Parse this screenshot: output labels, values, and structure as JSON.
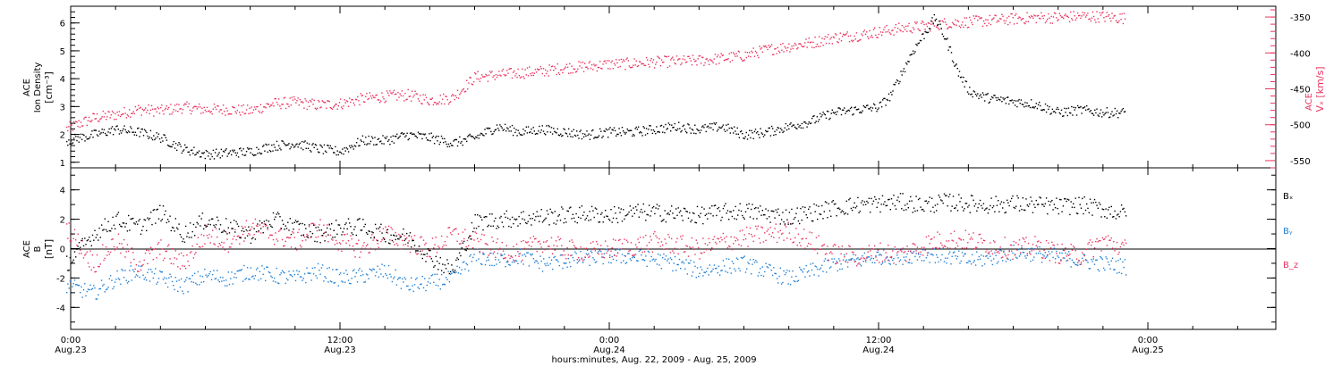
{
  "x_axis": {
    "title": "hours:minutes, Aug. 22, 2009 - Aug. 25, 2009",
    "ticks": [
      {
        "hours": 0,
        "time": "0:00",
        "date": "Aug.23"
      },
      {
        "hours": 12,
        "time": "12:00",
        "date": "Aug.23"
      },
      {
        "hours": 24,
        "time": "0:00",
        "date": "Aug.24"
      },
      {
        "hours": 36,
        "time": "12:00",
        "date": "Aug.24"
      },
      {
        "hours": 48,
        "time": "0:00",
        "date": "Aug.25"
      }
    ],
    "range_hours": [
      0,
      53.7
    ]
  },
  "top_panel": {
    "left_axis_label": [
      "ACE",
      "Ion Density",
      "[cm⁻³]"
    ],
    "right_axis_label": [
      "ACE",
      "Vₓ [km/s]"
    ],
    "left_ticks": [
      "1",
      "2",
      "3",
      "4",
      "5",
      "6"
    ],
    "right_ticks": [
      "-550",
      "-500",
      "-450",
      "-400",
      "-350"
    ],
    "left_color": "#000000",
    "right_color": "#e8345f"
  },
  "bottom_panel": {
    "axis_label": [
      "ACE",
      "B",
      "[nT]"
    ],
    "ticks": [
      "-4",
      "-2",
      "0",
      "2",
      "4"
    ],
    "legend": [
      {
        "name": "Bₓ",
        "color": "#000000"
      },
      {
        "name": "Bᵧ",
        "color": "#1f7fd6"
      },
      {
        "name": "B_z",
        "color": "#e8345f"
      }
    ]
  },
  "chart_data": [
    {
      "type": "scatter",
      "title": "",
      "xlabel": "hours:minutes, Aug. 22, 2009 - Aug. 25, 2009",
      "ylabel": "ACE Ion Density [cm⁻³]",
      "y2label": "ACE Vₓ [km/s]",
      "ylim": [
        0.8,
        6.6
      ],
      "y2lim": [
        -560,
        -335
      ],
      "grid": false,
      "x_units": "hours after 0:00 Aug.23",
      "series": [
        {
          "name": "Ion Density",
          "axis": "left",
          "color": "#000000",
          "x": [
            -0.2,
            1,
            2,
            3,
            4,
            5,
            6,
            7,
            8,
            9,
            10,
            11,
            12,
            13,
            14,
            15,
            16,
            17,
            18,
            19,
            20,
            21,
            22,
            23,
            24,
            25,
            26,
            27,
            28,
            29,
            30,
            31,
            32,
            33,
            34,
            35,
            36,
            36.5,
            37,
            37.5,
            38,
            38.5,
            39,
            39.5,
            40,
            40.5,
            41,
            42,
            43,
            44,
            45,
            46,
            47
          ],
          "y": [
            1.8,
            2.0,
            2.2,
            2.1,
            1.9,
            1.5,
            1.3,
            1.35,
            1.4,
            1.6,
            1.7,
            1.5,
            1.4,
            1.8,
            1.8,
            2.0,
            1.9,
            1.7,
            1.9,
            2.3,
            2.1,
            2.2,
            2.1,
            2.0,
            2.1,
            2.1,
            2.2,
            2.3,
            2.2,
            2.3,
            2.0,
            2.1,
            2.3,
            2.5,
            2.8,
            2.9,
            3.0,
            3.4,
            4.2,
            5.0,
            5.6,
            6.2,
            5.4,
            4.3,
            3.6,
            3.4,
            3.3,
            3.2,
            3.1,
            2.8,
            2.9,
            2.8,
            2.8
          ]
        },
        {
          "name": "Vx",
          "axis": "right",
          "color": "#e8345f",
          "x": [
            -0.2,
            1,
            2,
            3,
            4,
            5,
            6,
            7,
            8,
            9,
            10,
            11,
            12,
            13,
            14,
            15,
            16,
            17,
            18,
            19,
            20,
            21,
            22,
            23,
            24,
            25,
            26,
            27,
            28,
            29,
            30,
            31,
            32,
            33,
            34,
            35,
            36,
            37,
            38,
            39,
            40,
            41,
            42,
            43,
            44,
            45,
            46,
            47
          ],
          "y": [
            -505,
            -490,
            -485,
            -478,
            -480,
            -475,
            -478,
            -478,
            -480,
            -470,
            -468,
            -472,
            -470,
            -463,
            -460,
            -458,
            -465,
            -462,
            -433,
            -430,
            -427,
            -425,
            -420,
            -418,
            -415,
            -414,
            -412,
            -411,
            -410,
            -407,
            -403,
            -395,
            -390,
            -385,
            -378,
            -375,
            -370,
            -365,
            -362,
            -358,
            -356,
            -354,
            -352,
            -350,
            -350,
            -348,
            -349,
            -351
          ]
        }
      ]
    },
    {
      "type": "scatter",
      "title": "",
      "xlabel": "hours:minutes, Aug. 22, 2009 - Aug. 25, 2009",
      "ylabel": "ACE B [nT]",
      "ylim": [
        -5.5,
        5.5
      ],
      "grid": false,
      "zero_line": true,
      "x_units": "hours after 0:00 Aug.23",
      "series": [
        {
          "name": "Bₓ",
          "color": "#000000",
          "x": [
            -0.2,
            1,
            2,
            3,
            4,
            5,
            6,
            7,
            8,
            9,
            10,
            11,
            12,
            13,
            14,
            15,
            16,
            17,
            18,
            19,
            20,
            21,
            22,
            23,
            24,
            25,
            26,
            27,
            28,
            29,
            30,
            31,
            32,
            33,
            34,
            35,
            36,
            37,
            38,
            39,
            40,
            41,
            42,
            43,
            44,
            45,
            46,
            47
          ],
          "y": [
            -1.0,
            1.0,
            2.0,
            1.5,
            2.5,
            1.0,
            2.0,
            1.5,
            1.0,
            2.0,
            1.5,
            1.0,
            1.5,
            1.5,
            1.0,
            0.8,
            -0.5,
            -1.5,
            1.8,
            2.0,
            2.1,
            2.2,
            2.3,
            2.4,
            2.3,
            2.5,
            2.5,
            2.4,
            2.3,
            2.5,
            2.6,
            2.4,
            2.2,
            2.5,
            2.8,
            3.0,
            3.1,
            3.2,
            3.0,
            3.2,
            3.1,
            3.0,
            3.1,
            3.0,
            2.9,
            3.0,
            2.7,
            2.4
          ]
        },
        {
          "name": "Bᵧ",
          "color": "#1f7fd6",
          "x": [
            -0.2,
            1,
            2,
            3,
            4,
            5,
            6,
            7,
            8,
            9,
            10,
            11,
            12,
            13,
            14,
            15,
            16,
            17,
            18,
            19,
            20,
            21,
            22,
            23,
            24,
            25,
            26,
            27,
            28,
            29,
            30,
            31,
            32,
            33,
            34,
            35,
            36,
            37,
            38,
            39,
            40,
            41,
            42,
            43,
            44,
            45,
            46,
            47
          ],
          "y": [
            -2.5,
            -3.0,
            -2.0,
            -1.5,
            -2.0,
            -2.5,
            -1.8,
            -2.0,
            -1.5,
            -1.8,
            -2.0,
            -1.5,
            -2.0,
            -1.8,
            -1.5,
            -2.5,
            -2.3,
            -2.0,
            -0.5,
            -0.8,
            -0.5,
            -1.0,
            -0.8,
            -0.6,
            -0.5,
            -0.5,
            -0.7,
            -1.0,
            -1.5,
            -1.2,
            -1.0,
            -1.5,
            -2.0,
            -1.5,
            -1.0,
            -0.8,
            -0.5,
            -0.5,
            -0.3,
            -0.5,
            -0.8,
            -0.6,
            -0.2,
            -0.3,
            -0.5,
            -0.8,
            -1.0,
            -1.2
          ]
        },
        {
          "name": "B_z",
          "color": "#e8345f",
          "x": [
            -0.2,
            1,
            2,
            3,
            4,
            5,
            6,
            7,
            8,
            9,
            10,
            11,
            12,
            13,
            14,
            15,
            16,
            17,
            18,
            19,
            20,
            21,
            22,
            23,
            24,
            25,
            26,
            27,
            28,
            29,
            30,
            31,
            32,
            33,
            34,
            35,
            36,
            37,
            38,
            39,
            40,
            41,
            42,
            43,
            44,
            45,
            46,
            47
          ],
          "y": [
            1.5,
            -1.0,
            0.5,
            -1.0,
            0.0,
            -1.0,
            1.0,
            0.5,
            1.5,
            1.0,
            0.5,
            1.5,
            0.5,
            0.0,
            1.0,
            0.5,
            0.0,
            1.0,
            0.5,
            0.0,
            -0.2,
            0.5,
            0.0,
            -0.2,
            0.0,
            0.2,
            0.5,
            0.3,
            0.0,
            0.5,
            0.8,
            1.0,
            1.2,
            0.5,
            -0.3,
            -0.5,
            -0.2,
            -0.4,
            0.3,
            0.7,
            0.6,
            0.3,
            0.0,
            0.2,
            -0.3,
            -0.4,
            0.6,
            0.0
          ]
        }
      ]
    }
  ]
}
